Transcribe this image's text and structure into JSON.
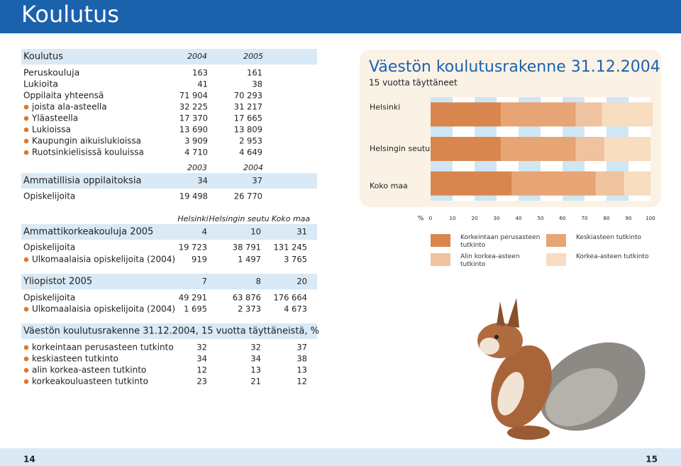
{
  "header": {
    "title": "Koulutus"
  },
  "tables": [
    {
      "kind": "caption",
      "label": "Koulutus",
      "values": [
        "2004",
        "2005"
      ]
    },
    {
      "kind": "row",
      "label": "Peruskouluja",
      "values": [
        "163",
        "161"
      ]
    },
    {
      "kind": "row",
      "label": "Lukioita",
      "values": [
        "41",
        "38"
      ]
    },
    {
      "kind": "row",
      "label": "Oppilaita yhteensä",
      "values": [
        "71 904",
        "70 293"
      ]
    },
    {
      "kind": "bullet",
      "label": "joista ala-asteella",
      "values": [
        "32 225",
        "31 217"
      ]
    },
    {
      "kind": "bullet",
      "label": "Yläasteella",
      "values": [
        "17 370",
        "17 665"
      ]
    },
    {
      "kind": "bullet",
      "label": "Lukioissa",
      "values": [
        "13 690",
        "13 809"
      ]
    },
    {
      "kind": "bullet",
      "label": "Kaupungin aikuislukioissa",
      "values": [
        "3 909",
        "2 953"
      ]
    },
    {
      "kind": "bullet",
      "label": "Ruotsinkielisissä kouluissa",
      "values": [
        "4 710",
        "4 649"
      ]
    },
    {
      "kind": "sub",
      "values": [
        "2003",
        "2004"
      ]
    },
    {
      "kind": "head",
      "label": "Ammatillisia oppilaitoksia",
      "values": [
        "34",
        "37"
      ]
    },
    {
      "kind": "row",
      "label": "Opiskelijoita",
      "values": [
        "19 498",
        "26 770"
      ]
    },
    {
      "kind": "sub",
      "values": [
        "Helsinki",
        "Helsingin seutu",
        "Koko maa"
      ]
    },
    {
      "kind": "head",
      "label": "Ammattikorkeakouluja 2005",
      "values": [
        "4",
        "10",
        "31"
      ]
    },
    {
      "kind": "row",
      "label": "Opiskelijoita",
      "values": [
        "19 723",
        "38 791",
        "131 245"
      ]
    },
    {
      "kind": "bullet",
      "label": "Ulkomaalaisia opiskelijoita (2004)",
      "values": [
        "919",
        "1 497",
        "3 765"
      ]
    },
    {
      "kind": "head",
      "label": "Yliopistot 2005",
      "values": [
        "7",
        "8",
        "20"
      ]
    },
    {
      "kind": "row",
      "label": "Opiskelijoita",
      "values": [
        "49 291",
        "63 876",
        "176 664"
      ]
    },
    {
      "kind": "bullet",
      "label": "Ulkomaalaisia opiskelijoita (2004)",
      "values": [
        "1 695",
        "2 373",
        "4 673"
      ]
    },
    {
      "kind": "head",
      "label": "Väestön koulutusrakenne 31.12.2004, 15 vuotta täyttäneistä, %",
      "values": []
    },
    {
      "kind": "bullet",
      "label": "korkeintaan perusasteen tutkinto",
      "values": [
        "32",
        "32",
        "37"
      ]
    },
    {
      "kind": "bullet",
      "label": "keskiasteen tutkinto",
      "values": [
        "34",
        "34",
        "38"
      ]
    },
    {
      "kind": "bullet",
      "label": "alin korkea-asteen tutkinto",
      "values": [
        "12",
        "13",
        "13"
      ]
    },
    {
      "kind": "bullet",
      "label": "korkeakouluasteen tutkinto",
      "values": [
        "23",
        "21",
        "12"
      ]
    }
  ],
  "chart_data": {
    "type": "bar",
    "orientation": "horizontal",
    "stacked": true,
    "title": "Väestön koulutusrakenne 31.12.2004",
    "subtitle": "15 vuotta täyttäneet",
    "categories": [
      "Helsinki",
      "Helsingin seutu",
      "Koko maa"
    ],
    "series": [
      {
        "name": "Korkeintaan perusasteen tutkinto",
        "color": "#d8864e",
        "values": [
          32,
          32,
          37
        ]
      },
      {
        "name": "Keskiasteen tutkinto",
        "color": "#e7a474",
        "values": [
          34,
          34,
          38
        ]
      },
      {
        "name": "Alin korkea-asteen tutkinto",
        "color": "#efc2a0",
        "values": [
          12,
          13,
          13
        ]
      },
      {
        "name": "Korkea-asteen tutkinto",
        "color": "#f8dcbf",
        "values": [
          23,
          21,
          12
        ]
      }
    ],
    "x_label": "%",
    "xlim": [
      0,
      100
    ],
    "xticks": [
      0,
      10,
      20,
      30,
      40,
      50,
      60,
      70,
      80,
      90,
      100
    ],
    "grid": true
  },
  "footer": {
    "left_page": "14",
    "right_page": "15"
  }
}
